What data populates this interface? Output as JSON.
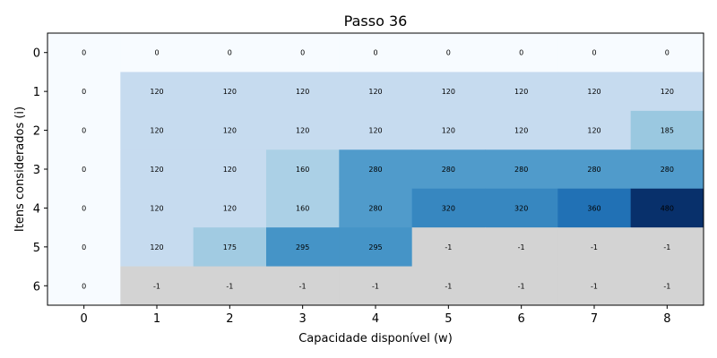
{
  "chart_data": {
    "type": "heatmap",
    "title": "Passo 36",
    "xlabel": "Capacidade disponível (w)",
    "ylabel": "Itens considerados (i)",
    "x_ticks": [
      "0",
      "1",
      "2",
      "3",
      "4",
      "5",
      "6",
      "7",
      "8"
    ],
    "y_ticks": [
      "0",
      "1",
      "2",
      "3",
      "4",
      "5",
      "6"
    ],
    "masked_value": -1,
    "colormap": "Blues",
    "masked_color": "#d3d3d3",
    "values": [
      [
        0,
        0,
        0,
        0,
        0,
        0,
        0,
        0,
        0
      ],
      [
        0,
        120,
        120,
        120,
        120,
        120,
        120,
        120,
        120
      ],
      [
        0,
        120,
        120,
        120,
        120,
        120,
        120,
        120,
        185
      ],
      [
        0,
        120,
        120,
        160,
        280,
        280,
        280,
        280,
        280
      ],
      [
        0,
        120,
        120,
        160,
        280,
        320,
        320,
        360,
        480
      ],
      [
        0,
        120,
        175,
        295,
        295,
        -1,
        -1,
        -1,
        -1
      ],
      [
        0,
        -1,
        -1,
        -1,
        -1,
        -1,
        -1,
        -1,
        -1
      ]
    ]
  }
}
